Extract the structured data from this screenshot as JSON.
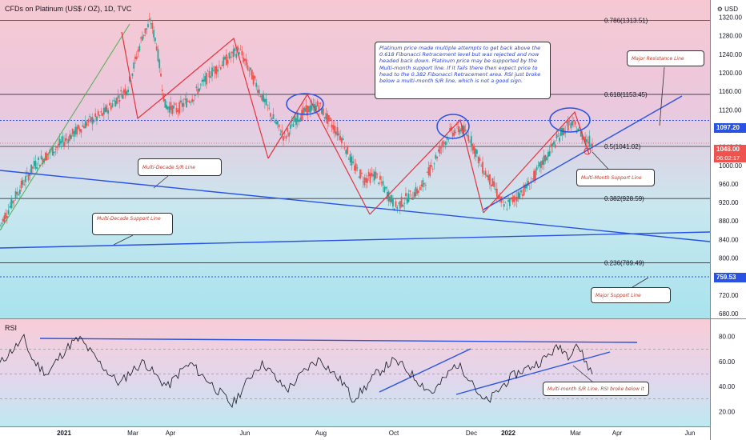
{
  "header": {
    "symbol_title": "CFDs on Platinum (US$ / OZ), 1D, TVC",
    "currency": "USD",
    "rsi_label": "RSI"
  },
  "chart_data": {
    "type": "candlestick",
    "title": "CFDs on Platinum (US$ / OZ), 1D, TVC",
    "ylim": [
      680,
      1340
    ],
    "y_ticks": [
      680,
      720,
      760,
      800,
      840,
      880,
      920,
      960,
      1000,
      1040,
      1080,
      1120,
      1160,
      1200,
      1240,
      1280,
      1320
    ],
    "x_ticks": [
      "2021",
      "Mar",
      "Apr",
      "Jun",
      "Aug",
      "Oct",
      "Dec",
      "2022",
      "Mar",
      "Apr",
      "Jun"
    ],
    "current_price": "1048.00",
    "countdown": "06:02:17",
    "price_tags": [
      "1097.20",
      "759.53"
    ],
    "fib_levels": [
      {
        "label": "0.786(1313.51)",
        "value": 1313.51
      },
      {
        "label": "0.618(1153.45)",
        "value": 1153.45
      },
      {
        "label": "0.5(1041.02)",
        "value": 1041.02
      },
      {
        "label": "0.382(928.59)",
        "value": 928.59
      },
      {
        "label": "0.236(789.49)",
        "value": 789.49
      }
    ],
    "price_path": [
      [
        0,
        870
      ],
      [
        6,
        940
      ],
      [
        12,
        1000
      ],
      [
        18,
        1030
      ],
      [
        24,
        1060
      ],
      [
        30,
        1090
      ],
      [
        36,
        1110
      ],
      [
        42,
        1150
      ],
      [
        45,
        1170
      ],
      [
        50,
        1280
      ],
      [
        53,
        1310
      ],
      [
        55,
        1260
      ],
      [
        58,
        1130
      ],
      [
        62,
        1120
      ],
      [
        68,
        1150
      ],
      [
        74,
        1200
      ],
      [
        80,
        1230
      ],
      [
        84,
        1250
      ],
      [
        88,
        1200
      ],
      [
        92,
        1150
      ],
      [
        96,
        1100
      ],
      [
        100,
        1060
      ],
      [
        104,
        1100
      ],
      [
        108,
        1120
      ],
      [
        112,
        1130
      ],
      [
        115,
        1100
      ],
      [
        120,
        1060
      ],
      [
        124,
        1000
      ],
      [
        128,
        970
      ],
      [
        132,
        980
      ],
      [
        136,
        940
      ],
      [
        139,
        910
      ],
      [
        143,
        930
      ],
      [
        148,
        950
      ],
      [
        154,
        1030
      ],
      [
        158,
        1070
      ],
      [
        162,
        1080
      ],
      [
        165,
        1060
      ],
      [
        169,
        1000
      ],
      [
        173,
        960
      ],
      [
        177,
        910
      ],
      [
        181,
        930
      ],
      [
        186,
        960
      ],
      [
        190,
        1000
      ],
      [
        194,
        1040
      ],
      [
        197,
        1070
      ],
      [
        200,
        1090
      ],
      [
        203,
        1080
      ],
      [
        205,
        1060
      ],
      [
        208,
        1048
      ]
    ],
    "annotations": [
      "Platinum price made multiple attempts to get back above the 0.618 Fibonacci Retracement level but was rejected and now headed back down. Platinum price may be supported by the Multi-month support line. If it fails there then expect price to head to the 0.382 Fibonacci Retracement area. RSI just broke below a multi-month S/R line, which is not a good sign.",
      "Major Resistance Line",
      "Multi-Decade S/R Line",
      "Multi-Month Support Line",
      "Multi-Decade Support Line",
      "Major Support Line",
      "Multi-month S/R Line, RSI broke below it"
    ],
    "rsi": {
      "ylim": [
        10,
        90
      ],
      "y_ticks": [
        20,
        40,
        60,
        80
      ],
      "levels": [
        70,
        50,
        30
      ],
      "values": [
        58,
        66,
        72,
        78,
        62,
        55,
        50,
        60,
        68,
        75,
        78,
        70,
        62,
        55,
        48,
        42,
        50,
        55,
        60,
        52,
        45,
        40,
        48,
        55,
        58,
        50,
        45,
        38,
        32,
        25,
        35,
        45,
        55,
        58,
        50,
        42,
        38,
        45,
        52,
        58,
        62,
        55,
        48,
        42,
        30,
        35,
        42,
        50,
        55,
        60,
        58,
        52,
        46,
        40,
        35,
        42,
        50,
        58,
        52,
        45,
        30,
        28,
        35,
        42,
        48,
        52,
        55,
        58,
        62,
        68,
        72,
        65,
        75,
        62,
        50
      ]
    },
    "colors": {
      "fib_line": "#131722",
      "trend_blue": "#2952e3",
      "zigzag_red": "#e8323c",
      "impulse_green": "#4caf50",
      "candle_up": "#26a69a",
      "candle_down": "#ef5350",
      "current_tag": "#ef5350",
      "resistance_tag": "#2952e3"
    }
  }
}
